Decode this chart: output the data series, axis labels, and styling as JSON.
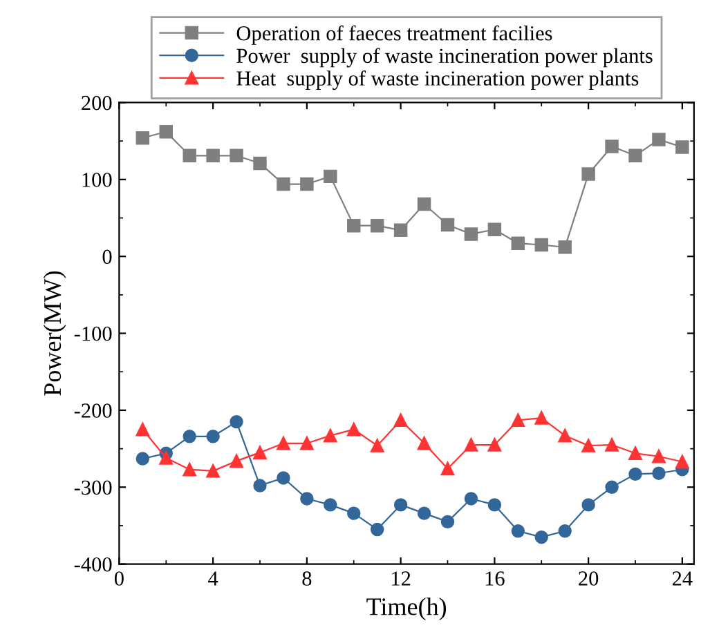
{
  "chart_data": {
    "type": "line",
    "xlabel": "Time(h)",
    "ylabel": "Power(MW)",
    "x": [
      1,
      2,
      3,
      4,
      5,
      6,
      7,
      8,
      9,
      10,
      11,
      12,
      13,
      14,
      15,
      16,
      17,
      18,
      19,
      20,
      21,
      22,
      23,
      24
    ],
    "xlim": [
      0,
      24.5
    ],
    "xticks": [
      0,
      4,
      8,
      12,
      16,
      20,
      24
    ],
    "ylim": [
      -400,
      200
    ],
    "yticks": [
      -400,
      -300,
      -200,
      -100,
      0,
      100,
      200
    ],
    "legend": "top",
    "grid": false,
    "series": [
      {
        "name": "Operation of faeces treatment facilies",
        "color": "#7f7f7f",
        "marker": "square",
        "values": [
          154,
          162,
          131,
          131,
          131,
          121,
          94,
          94,
          104,
          40,
          40,
          34,
          68,
          41,
          29,
          35,
          17,
          15,
          12,
          107,
          143,
          131,
          152,
          142
        ]
      },
      {
        "name": "Power  supply of waste incineration power plants",
        "color": "#336699",
        "marker": "circle",
        "values": [
          -263,
          -256,
          -234,
          -234,
          -215,
          -298,
          -288,
          -315,
          -323,
          -334,
          -355,
          -323,
          -334,
          -345,
          -315,
          -323,
          -357,
          -365,
          -357,
          -323,
          -300,
          -283,
          -282,
          -277
        ]
      },
      {
        "name": "Heat  supply of waste incineration power plants",
        "color": "#ff3333",
        "marker": "triangle",
        "values": [
          -225,
          -262,
          -277,
          -279,
          -266,
          -255,
          -243,
          -243,
          -233,
          -225,
          -246,
          -213,
          -243,
          -276,
          -245,
          -245,
          -213,
          -210,
          -233,
          -246,
          -245,
          -256,
          -260,
          -267
        ]
      }
    ]
  }
}
